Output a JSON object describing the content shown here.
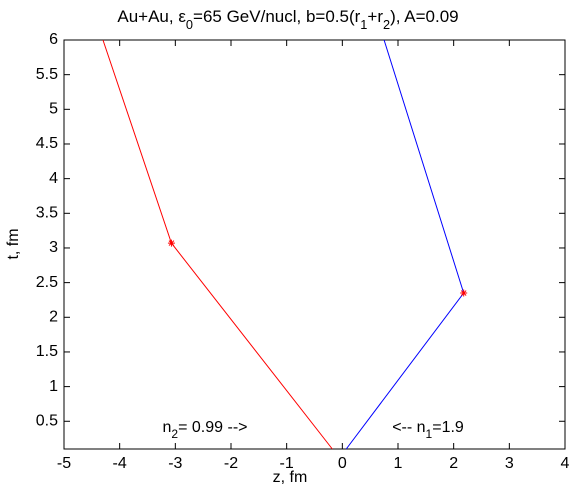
{
  "chart_data": {
    "type": "line",
    "title": [
      {
        "text": "Au+Au, ε",
        "sub": false
      },
      {
        "text": "0",
        "sub": true
      },
      {
        "text": "=65 GeV/nucl, b=0.5(r",
        "sub": false
      },
      {
        "text": "1",
        "sub": true
      },
      {
        "text": "+r",
        "sub": false
      },
      {
        "text": "2",
        "sub": true
      },
      {
        "text": "), A=0.09",
        "sub": false
      }
    ],
    "x_label": "z, fm",
    "y_label": "t, fm",
    "xlim": [
      -5,
      4
    ],
    "ylim": [
      0.1,
      6
    ],
    "xticks": [
      -5,
      -4,
      -3,
      -2,
      -1,
      0,
      1,
      2,
      3,
      4
    ],
    "yticks": [
      0.5,
      1,
      1.5,
      2,
      2.5,
      3,
      3.5,
      4,
      4.5,
      5,
      5.5,
      6
    ],
    "grid": false,
    "series": [
      {
        "color": "#ff0000",
        "marker_color": "#ff0000",
        "x": [
          -0.18,
          -3.07,
          -4.3
        ],
        "values": [
          0.1,
          3.07,
          6
        ],
        "markers": [
          false,
          true,
          false
        ]
      },
      {
        "color": "#0000ff",
        "marker_color": "#ff0000",
        "x": [
          0.07,
          2.18,
          0.75
        ],
        "values": [
          0.1,
          2.35,
          6
        ],
        "markers": [
          false,
          true,
          false
        ]
      }
    ],
    "annotations": [
      [
        {
          "text": "n",
          "sub": false
        },
        {
          "text": "2",
          "sub": true
        },
        {
          "text": "= 0.99  -->",
          "sub": false
        }
      ],
      [
        {
          "text": "<--  n",
          "sub": false
        },
        {
          "text": "1",
          "sub": true
        },
        {
          "text": "=1.9",
          "sub": false
        }
      ]
    ]
  }
}
